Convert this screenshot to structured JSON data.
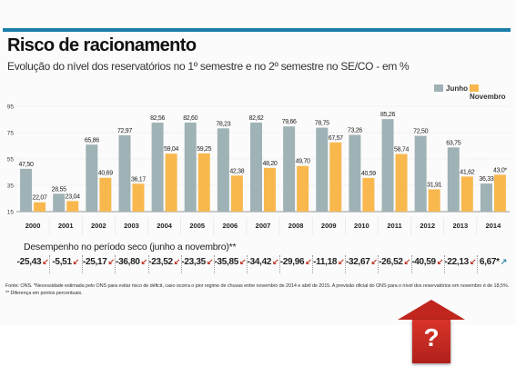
{
  "title": "Risco de racionamento",
  "subtitle": "Evolução do nível dos reservatórios no 1º semestre e no 2º semestre no SE/CO - em %",
  "colors": {
    "junho": "#9fb2b5",
    "novembro": "#f8b84e",
    "accent": "#1a7ea8",
    "down": "#c0392b",
    "up": "#2e86a8",
    "warning": "#c0261e"
  },
  "chart_data": {
    "type": "bar",
    "categories": [
      "2000",
      "2001",
      "2002",
      "2003",
      "2004",
      "2005",
      "2006",
      "2007",
      "2008",
      "2009",
      "2010",
      "2011",
      "2012",
      "2013",
      "2014"
    ],
    "series": [
      {
        "name": "Junho",
        "values": [
          47.5,
          28.55,
          65.86,
          72.97,
          82.56,
          82.6,
          78.23,
          82.62,
          79.66,
          78.75,
          73.26,
          85.26,
          72.5,
          63.75,
          36.33
        ],
        "labels": [
          "47,50",
          "28,55",
          "65,86",
          "72,97",
          "82,56",
          "82,60",
          "78,23",
          "82,62",
          "79,66",
          "78,75",
          "73,26",
          "85,26",
          "72,50",
          "63,75",
          "36,33"
        ]
      },
      {
        "name": "Novembro",
        "values": [
          22.07,
          23.04,
          40.69,
          36.17,
          59.04,
          59.25,
          42.38,
          48.2,
          49.7,
          67.57,
          40.59,
          58.74,
          31.91,
          41.62,
          43.0
        ],
        "labels": [
          "22,07",
          "23,04",
          "40,69",
          "36,17",
          "59,04",
          "59,25",
          "42,38",
          "48,20",
          "49,70",
          "67,57",
          "40,59",
          "58,74",
          "31,91",
          "41,62",
          "43,0*"
        ]
      }
    ],
    "y_ticks": [
      "15",
      "35",
      "55",
      "75",
      "95"
    ],
    "ylim": [
      15,
      95
    ],
    "grid": true,
    "legend": "top-right",
    "xlabel": "",
    "ylabel": ""
  },
  "performance": {
    "title": "Desempenho no período seco (junho a novembro)**",
    "values": [
      "-25,43",
      "-5,51",
      "-25,17",
      "-36,80",
      "-23,52",
      "-23,35",
      "-35,85",
      "-34,42",
      "-29,96",
      "-11,18",
      "-32,67",
      "-26,52",
      "-40,59",
      "-22,13",
      "6,67*"
    ],
    "direction": [
      "down",
      "down",
      "down",
      "down",
      "down",
      "down",
      "down",
      "down",
      "down",
      "down",
      "down",
      "down",
      "down",
      "down",
      "up"
    ]
  },
  "footnotes": [
    "Fonte: ONS. *Necessidade estimada pelo ONS para evitar risco de déficit, caso ocorra o pior regime de chuvas entre novembro de 2014 e abril de 2015. A previsão oficial do ONS para o nível dos reservatórios em novembro é de 18,5%.",
    "** Diferença em pontos percentuais."
  ],
  "badge": "?"
}
